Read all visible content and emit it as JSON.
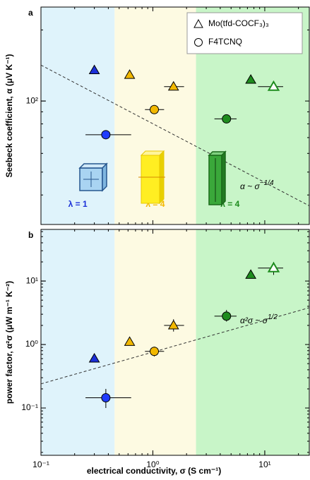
{
  "chart_data": [
    {
      "type": "scatter",
      "panel_label": "a",
      "log_x": true,
      "log_y": true,
      "xlim": [
        0.1,
        25
      ],
      "ylim": [
        30,
        250
      ],
      "yticks": [
        {
          "value": 100,
          "label": "10²"
        }
      ],
      "ylabel": "Seebeck coefficient, α (μV K⁻¹)",
      "legend": "upper right",
      "regions": [
        {
          "x": [
            0.1,
            0.455
          ],
          "color": "#dff3fb",
          "label": "λ = 1",
          "label_color": "#1a2fd8"
        },
        {
          "x": [
            0.455,
            2.43
          ],
          "color": "#fdfae2",
          "label": "λ = 4",
          "label_color": "#f2b800"
        },
        {
          "x": [
            2.43,
            25
          ],
          "color": "#c8f5c8",
          "label": "λ = 4",
          "label_color": "#1e8c1e"
        }
      ],
      "fit": {
        "x": [
          0.1,
          25
        ],
        "y": [
          142,
          36
        ]
      },
      "annotation": {
        "text": "α ~ σ",
        "sup": "−1/4"
      },
      "series": [
        {
          "name": "Mo(tfd-COCF₃)₃",
          "marker": "triangle",
          "x": [
            0.3,
            0.62,
            1.53,
            7.5,
            12
          ],
          "y": [
            135,
            129,
            115,
            123,
            115
          ],
          "colors": [
            "#1a2fd8",
            "#f2b800",
            "#f2b800",
            "#1e8c1e",
            "#1e8c1e"
          ],
          "filled": [
            true,
            true,
            true,
            true,
            false
          ],
          "x_err": [
            null,
            null,
            [
              1.26,
              1.9
            ],
            null,
            [
              8.7,
              14.6
            ]
          ]
        },
        {
          "name": "F4TCNQ",
          "marker": "circle",
          "x": [
            0.38,
            1.03,
            4.55
          ],
          "y": [
            72,
            92,
            84
          ],
          "colors": [
            "#1f3cff",
            "#f2b800",
            "#1e8c1e"
          ],
          "filled": [
            true,
            true,
            true
          ],
          "x_err": [
            [
              0.25,
              0.64
            ],
            [
              0.85,
              1.26
            ],
            [
              3.55,
              5.6
            ]
          ]
        }
      ]
    },
    {
      "type": "scatter",
      "panel_label": "b",
      "log_x": true,
      "log_y": true,
      "xlim": [
        0.1,
        25
      ],
      "ylim": [
        0.018,
        65
      ],
      "xticks": [
        {
          "value": 0.1,
          "label": "10⁻¹"
        },
        {
          "value": 1,
          "label": "10⁰"
        },
        {
          "value": 10,
          "label": "10¹"
        }
      ],
      "yticks": [
        {
          "value": 0.1,
          "label": "10⁻¹"
        },
        {
          "value": 1,
          "label": "10⁰"
        },
        {
          "value": 10,
          "label": "10¹"
        }
      ],
      "xlabel": "electrical conductivity, σ (S cm⁻¹)",
      "ylabel": "power factor, α²σ (μW m⁻¹ K⁻²)",
      "regions": [
        {
          "x": [
            0.1,
            0.455
          ],
          "color": "#dff3fb"
        },
        {
          "x": [
            0.455,
            2.43
          ],
          "color": "#fdfae2"
        },
        {
          "x": [
            2.43,
            25
          ],
          "color": "#c8f5c8"
        }
      ],
      "fit": {
        "x": [
          0.1,
          25
        ],
        "y": [
          0.24,
          3.8
        ]
      },
      "annotation": {
        "text": "α²σ ~ σ",
        "sup": "1/2"
      },
      "series": [
        {
          "marker": "triangle",
          "x": [
            0.3,
            0.62,
            1.53,
            7.5,
            12
          ],
          "y": [
            0.6,
            1.1,
            2.0,
            12.5,
            16
          ],
          "colors": [
            "#1a2fd8",
            "#f2b800",
            "#f2b800",
            "#1e8c1e",
            "#1e8c1e"
          ],
          "filled": [
            true,
            true,
            true,
            true,
            false
          ],
          "x_err": [
            null,
            null,
            [
              1.26,
              1.9
            ],
            null,
            [
              8.7,
              14.6
            ]
          ],
          "y_err": [
            null,
            null,
            [
              1.6,
              2.5
            ],
            null,
            [
              12.5,
              20
            ]
          ]
        },
        {
          "marker": "circle",
          "x": [
            0.38,
            1.03,
            4.55
          ],
          "y": [
            0.145,
            0.78,
            2.8
          ],
          "colors": [
            "#1f3cff",
            "#f2b800",
            "#1e8c1e"
          ],
          "filled": [
            true,
            true,
            true
          ],
          "x_err": [
            [
              0.25,
              0.64
            ],
            [
              0.85,
              1.26
            ],
            [
              3.55,
              5.6
            ]
          ],
          "y_err": [
            [
              0.1,
              0.2
            ],
            [
              0.65,
              0.92
            ],
            [
              2.3,
              3.5
            ]
          ]
        }
      ]
    }
  ]
}
